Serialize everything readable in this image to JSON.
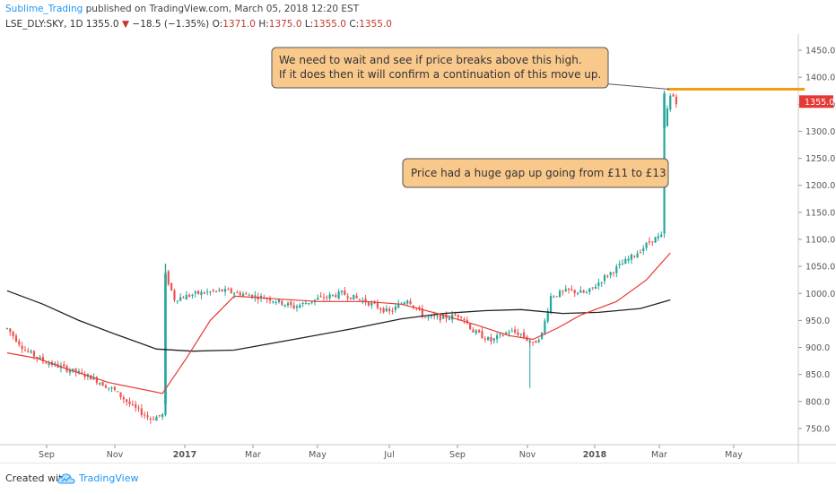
{
  "header": {
    "author": "Sublime_Trading",
    "published_text": "published on TradingView.com, March 05, 2018 12:20 EST"
  },
  "ohlc_bar": {
    "symbol": "LSE_DLY:SKY, 1D",
    "last": "1355.0",
    "change": "−18.5 (−1.35%)",
    "open_label": "O:",
    "open": "1371.0",
    "high_label": "H:",
    "high": "1375.0",
    "low_label": "L:",
    "low": "1355.0",
    "close_label": "C:",
    "close": "1355.0"
  },
  "footer": {
    "created_with": "Created with",
    "brand": "TradingView"
  },
  "colors": {
    "up": "#26a69a",
    "down": "#ef5350",
    "ema_short": "#e53935",
    "ma_long": "#222222",
    "resistance": "#f39c12",
    "note_bg": "#f9c98c",
    "note_border": "#555555",
    "price_tag": "#e53935"
  },
  "chart_data": {
    "type": "candlestick",
    "x_ticks": [
      "Sep",
      "Nov",
      "2017",
      "Mar",
      "May",
      "Jul",
      "Sep",
      "Nov",
      "2018",
      "Mar",
      "May"
    ],
    "y_ticks": [
      750,
      800,
      850,
      900,
      950,
      1000,
      1050,
      1100,
      1150,
      1200,
      1250,
      1300,
      1350,
      1400,
      1450
    ],
    "y_tick_labels": [
      "750.0",
      "800.0",
      "850.0",
      "900.0",
      "950.0",
      "1000.0",
      "1050.0",
      "1100.0",
      "1150.0",
      "1200.0",
      "1250.0",
      "1300.0",
      "1350.0",
      "1400.0",
      "1450.0"
    ],
    "ylim": [
      720,
      1480
    ],
    "last_price_label": "1355.0",
    "last_price": 1355,
    "price_path": [
      [
        0,
        935
      ],
      [
        6,
        895
      ],
      [
        12,
        875
      ],
      [
        20,
        860
      ],
      [
        28,
        845
      ],
      [
        36,
        820
      ],
      [
        42,
        790
      ],
      [
        48,
        768
      ],
      [
        52,
        775
      ],
      [
        53,
        1035
      ],
      [
        56,
        990
      ],
      [
        64,
        1000
      ],
      [
        72,
        1005
      ],
      [
        80,
        998
      ],
      [
        88,
        990
      ],
      [
        96,
        975
      ],
      [
        104,
        990
      ],
      [
        112,
        1000
      ],
      [
        120,
        985
      ],
      [
        128,
        965
      ],
      [
        134,
        990
      ],
      [
        140,
        955
      ],
      [
        146,
        955
      ],
      [
        152,
        960
      ],
      [
        156,
        930
      ],
      [
        162,
        912
      ],
      [
        168,
        930
      ],
      [
        172,
        925
      ],
      [
        176,
        905
      ],
      [
        179,
        925
      ],
      [
        182,
        995
      ],
      [
        188,
        1005
      ],
      [
        194,
        1000
      ],
      [
        200,
        1030
      ],
      [
        206,
        1055
      ],
      [
        212,
        1080
      ],
      [
        216,
        1100
      ],
      [
        219,
        1105
      ],
      [
        220,
        1310
      ],
      [
        221,
        1340
      ],
      [
        222,
        1365
      ],
      [
        223,
        1365
      ],
      [
        224,
        1355
      ]
    ],
    "ema_short": [
      [
        0,
        890
      ],
      [
        10,
        880
      ],
      [
        20,
        860
      ],
      [
        34,
        835
      ],
      [
        52,
        815
      ],
      [
        60,
        880
      ],
      [
        68,
        950
      ],
      [
        76,
        995
      ],
      [
        90,
        990
      ],
      [
        104,
        985
      ],
      [
        120,
        985
      ],
      [
        132,
        980
      ],
      [
        146,
        960
      ],
      [
        158,
        940
      ],
      [
        168,
        922
      ],
      [
        176,
        915
      ],
      [
        184,
        935
      ],
      [
        192,
        960
      ],
      [
        204,
        985
      ],
      [
        214,
        1025
      ],
      [
        222,
        1075
      ]
    ],
    "ma_long": [
      [
        0,
        1005
      ],
      [
        12,
        980
      ],
      [
        24,
        950
      ],
      [
        36,
        925
      ],
      [
        50,
        897
      ],
      [
        62,
        893
      ],
      [
        76,
        895
      ],
      [
        96,
        915
      ],
      [
        116,
        935
      ],
      [
        132,
        953
      ],
      [
        146,
        963
      ],
      [
        160,
        968
      ],
      [
        172,
        970
      ],
      [
        186,
        963
      ],
      [
        198,
        965
      ],
      [
        212,
        972
      ],
      [
        222,
        988
      ]
    ],
    "resistance": {
      "from_x": 221,
      "to_x": 267,
      "y": 1378
    },
    "annotations": [
      {
        "text": [
          "We need to wait and see if price breaks above this high.",
          "If it does then it will confirm a continuation of this move up."
        ]
      },
      {
        "text": [
          "Price had a huge gap up going from £11 to £13"
        ]
      }
    ]
  }
}
